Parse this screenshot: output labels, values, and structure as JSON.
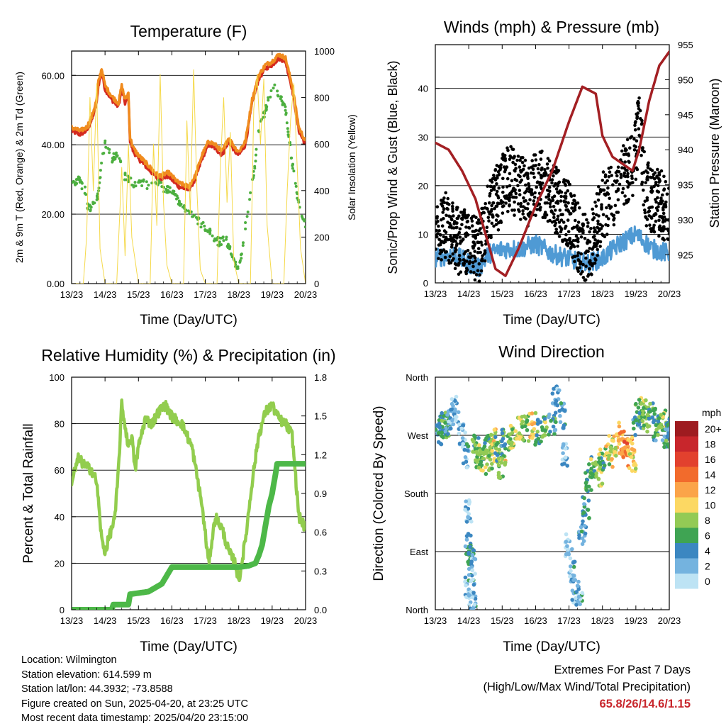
{
  "colors": {
    "temp2m": "#d42a20",
    "temp9m": "#f08b1e",
    "dewpoint": "#4caf3f",
    "solar": "#f5d94a",
    "wind": "#4f9ad4",
    "gust": "#000000",
    "pressure": "#a31f23",
    "rh": "#92cd4e",
    "precip": "#4db848",
    "grid": "#000000",
    "extremes_text": "#c8262c"
  },
  "footer": {
    "location": "Location: Wilmington",
    "elevation": "Station elevation: 614.599 m",
    "latlon": "Station lat/lon: 44.3932; -73.8588",
    "created": "Figure created on Sun, 2025-04-20, at 23:25 UTC",
    "latest": "Most recent data timestamp: 2025/04/20 23:15:00",
    "extremes_title1": "Extremes For Past 7 Days",
    "extremes_title2": "(High/Low/Max Wind/Total Precipitation)",
    "extremes_values": "65.8/26/14.6/1.15"
  },
  "chart_data": [
    {
      "id": "temperature",
      "type": "line",
      "title": "Temperature (F)",
      "xlabel": "Time (Day/UTC)",
      "ylabel": "2m & 9m T (Red, Orange) & 2m Td (Green)",
      "y2label": "Solar Insolation (Yellow)",
      "x_ticks": [
        "13/23",
        "14/23",
        "15/23",
        "16/23",
        "17/23",
        "18/23",
        "19/23",
        "20/23"
      ],
      "xlim": [
        0,
        7
      ],
      "ylim": [
        0,
        67
      ],
      "y_ticks": [
        0,
        20,
        40,
        60
      ],
      "y_tick_labels": [
        "0.00",
        "20.00",
        "40.00",
        "60.00"
      ],
      "y2lim": [
        0,
        1000
      ],
      "y2_ticks": [
        0,
        200,
        400,
        600,
        800,
        1000
      ],
      "grid": "horizontal",
      "series": [
        {
          "key": "t2m",
          "style": "line",
          "color": "temp2m",
          "x": [
            0,
            0.25,
            0.45,
            0.6,
            0.75,
            0.8,
            0.9,
            1.0,
            1.2,
            1.4,
            1.5,
            1.6,
            1.7,
            1.75,
            1.85,
            2.0,
            2.1,
            2.3,
            2.6,
            2.9,
            3.0,
            3.2,
            3.5,
            3.7,
            3.9,
            4.1,
            4.3,
            4.5,
            4.7,
            4.9,
            5.0,
            5.2,
            5.4,
            5.6,
            5.8,
            6.0,
            6.2,
            6.4,
            6.6,
            6.8,
            7.0
          ],
          "y": [
            44,
            43,
            44,
            47,
            52,
            57,
            61,
            56,
            53,
            51,
            56,
            52,
            54,
            41,
            38,
            36,
            35,
            33,
            30,
            31,
            30,
            28,
            27,
            30,
            36,
            40,
            39,
            37,
            41,
            38,
            37,
            40,
            52,
            59,
            62,
            63,
            65,
            64,
            56,
            44,
            40
          ]
        },
        {
          "key": "t9m",
          "style": "line",
          "color": "temp9m",
          "x": [
            0,
            0.25,
            0.45,
            0.6,
            0.75,
            0.8,
            0.9,
            1.0,
            1.2,
            1.4,
            1.5,
            1.6,
            1.7,
            1.75,
            1.85,
            2.0,
            2.1,
            2.3,
            2.6,
            2.9,
            3.0,
            3.2,
            3.5,
            3.7,
            3.9,
            4.1,
            4.3,
            4.5,
            4.7,
            4.9,
            5.0,
            5.2,
            5.4,
            5.6,
            5.8,
            6.0,
            6.2,
            6.4,
            6.6,
            6.8,
            7.0
          ],
          "y": [
            45,
            44,
            45,
            48,
            53,
            58,
            62,
            57,
            54,
            52,
            57,
            53,
            55,
            42,
            39,
            37,
            36,
            34,
            31,
            32,
            31,
            29,
            28,
            31,
            37,
            41,
            40,
            38,
            42,
            39,
            38,
            41,
            53,
            60,
            63,
            64,
            66,
            65,
            57,
            45,
            41
          ]
        },
        {
          "key": "td",
          "style": "dots",
          "color": "dewpoint",
          "x": [
            0,
            0.2,
            0.4,
            0.5,
            0.7,
            0.8,
            0.9,
            1.0,
            1.2,
            1.4,
            1.5,
            1.7,
            1.9,
            2.1,
            2.4,
            2.6,
            2.8,
            3.0,
            3.2,
            3.4,
            3.6,
            3.8,
            4.0,
            4.2,
            4.4,
            4.6,
            4.8,
            5.0,
            5.2,
            5.4,
            5.6,
            5.8,
            5.9,
            6.0,
            6.2,
            6.4,
            6.6,
            6.8,
            7.0
          ],
          "y": [
            29,
            30,
            27,
            21,
            24,
            26,
            35,
            41,
            36,
            38,
            32,
            30,
            28,
            29,
            28,
            29,
            27,
            27,
            24,
            22,
            20,
            18,
            16,
            14,
            12,
            13,
            9,
            3,
            17,
            28,
            44,
            50,
            53,
            57,
            55,
            50,
            35,
            22,
            17
          ]
        },
        {
          "key": "solar",
          "style": "thin",
          "color": "solar",
          "axis": "y2",
          "x": [
            0,
            0.35,
            0.45,
            0.55,
            0.65,
            0.75,
            0.85,
            1.0,
            1.35,
            1.5,
            1.6,
            1.7,
            1.8,
            2.0,
            2.35,
            2.45,
            2.55,
            2.65,
            2.75,
            2.85,
            3.0,
            3.35,
            3.45,
            3.55,
            3.65,
            3.75,
            3.85,
            4.0,
            4.35,
            4.45,
            4.55,
            4.65,
            4.75,
            4.85,
            5.0,
            5.35,
            5.45,
            5.55,
            5.65,
            5.75,
            5.85,
            6.0,
            6.35,
            6.45,
            6.55,
            6.65,
            6.75,
            6.85,
            7.0
          ],
          "y": [
            0,
            0,
            200,
            800,
            400,
            860,
            150,
            0,
            0,
            500,
            120,
            600,
            200,
            0,
            0,
            600,
            250,
            900,
            350,
            80,
            0,
            0,
            700,
            300,
            920,
            400,
            60,
            0,
            0,
            500,
            800,
            350,
            650,
            100,
            0,
            0,
            750,
            900,
            600,
            880,
            250,
            0,
            0,
            400,
            700,
            860,
            500,
            150,
            0
          ]
        }
      ]
    },
    {
      "id": "winds",
      "type": "scatter",
      "title": "Winds (mph) & Pressure (mb)",
      "xlabel": "Time (Day/UTC)",
      "ylabel": "Sonic/Prop Wind & Gust (Blue, Black)",
      "y2label": "Station Pressure (Maroon)",
      "x_ticks": [
        "13/23",
        "14/23",
        "15/23",
        "16/23",
        "17/23",
        "18/23",
        "19/23",
        "20/23"
      ],
      "xlim": [
        0,
        7
      ],
      "ylim": [
        0,
        49
      ],
      "y_ticks": [
        0,
        10,
        20,
        30,
        40
      ],
      "y2lim": [
        921,
        955
      ],
      "y2_ticks": [
        925,
        930,
        935,
        940,
        945,
        950,
        955
      ],
      "grid": "horizontal",
      "series": [
        {
          "key": "wind",
          "style": "line",
          "color": "wind",
          "x": [
            0,
            0.5,
            1.0,
            1.3,
            1.6,
            2.0,
            2.5,
            3.0,
            3.5,
            4.0,
            4.5,
            5.0,
            5.5,
            6.0,
            6.5,
            7.0
          ],
          "y": [
            5,
            6,
            4,
            3,
            6,
            7,
            7,
            8,
            6,
            5,
            4,
            5,
            8,
            10,
            7,
            6
          ]
        },
        {
          "key": "gust",
          "style": "dots",
          "color": "gust",
          "x": [
            0,
            0.3,
            0.6,
            1.0,
            1.3,
            1.6,
            1.9,
            2.2,
            2.5,
            2.8,
            3.1,
            3.4,
            3.7,
            4.0,
            4.3,
            4.6,
            5.0,
            5.3,
            5.6,
            5.9,
            6.1,
            6.3,
            6.6,
            7.0
          ],
          "y": [
            10,
            12,
            9,
            8,
            6,
            14,
            18,
            22,
            20,
            18,
            21,
            19,
            16,
            14,
            9,
            6,
            16,
            18,
            21,
            24,
            32,
            18,
            17,
            15
          ]
        },
        {
          "key": "pressure",
          "style": "line",
          "color": "pressure",
          "axis": "y2",
          "x": [
            0,
            0.4,
            0.8,
            1.2,
            1.5,
            1.8,
            2.1,
            2.5,
            3.0,
            3.5,
            4.0,
            4.4,
            4.8,
            5.0,
            5.3,
            5.6,
            5.9,
            6.1,
            6.4,
            6.7,
            7.0
          ],
          "y": [
            941,
            940,
            937,
            933,
            928,
            923,
            922,
            926,
            932,
            937,
            944,
            949,
            948,
            942,
            939,
            938,
            937,
            940,
            947,
            952,
            954
          ]
        }
      ]
    },
    {
      "id": "humidity",
      "type": "line",
      "title": "Relative Humidity (%) & Precipitation (in)",
      "xlabel": "Time (Day/UTC)",
      "ylabel": "Percent & Total Rainfall",
      "x_ticks": [
        "13/23",
        "14/23",
        "15/23",
        "16/23",
        "17/23",
        "18/23",
        "19/23",
        "20/23"
      ],
      "xlim": [
        0,
        7
      ],
      "ylim": [
        0,
        100
      ],
      "y_ticks": [
        0,
        20,
        40,
        60,
        80,
        100
      ],
      "y2lim": [
        0,
        1.8
      ],
      "y2_ticks": [
        0.0,
        0.3,
        0.6,
        0.9,
        1.2,
        1.5,
        1.8
      ],
      "y2_tick_labels": [
        "0.0",
        "0.3",
        "0.6",
        "0.9",
        "1.2",
        "1.5",
        "1.8"
      ],
      "grid": "horizontal",
      "series": [
        {
          "key": "rh",
          "style": "line",
          "color": "rh",
          "x": [
            0,
            0.2,
            0.4,
            0.6,
            0.75,
            0.9,
            1.0,
            1.2,
            1.3,
            1.4,
            1.5,
            1.7,
            1.8,
            1.9,
            2.0,
            2.2,
            2.4,
            2.6,
            2.8,
            3.0,
            3.3,
            3.6,
            3.9,
            4.1,
            4.3,
            4.5,
            4.7,
            4.9,
            5.0,
            5.2,
            5.4,
            5.6,
            5.8,
            6.0,
            6.2,
            6.4,
            6.6,
            6.8,
            7.0
          ],
          "y": [
            55,
            65,
            62,
            60,
            55,
            30,
            25,
            35,
            40,
            60,
            88,
            70,
            75,
            60,
            70,
            82,
            80,
            85,
            88,
            83,
            80,
            70,
            45,
            20,
            40,
            35,
            25,
            20,
            12,
            30,
            55,
            75,
            85,
            88,
            82,
            80,
            75,
            40,
            35
          ]
        },
        {
          "key": "precip",
          "style": "line",
          "color": "precip",
          "axis": "y2",
          "x": [
            0,
            1.2,
            1.25,
            1.7,
            1.75,
            2.3,
            2.7,
            3.0,
            3.5,
            4.0,
            4.5,
            5.0,
            5.3,
            5.5,
            5.6,
            5.7,
            5.8,
            5.9,
            6.0,
            6.1,
            6.15,
            7.0
          ],
          "y": [
            0,
            0,
            0.04,
            0.04,
            0.12,
            0.14,
            0.2,
            0.33,
            0.33,
            0.33,
            0.33,
            0.33,
            0.34,
            0.36,
            0.42,
            0.5,
            0.65,
            0.8,
            0.9,
            1.05,
            1.13,
            1.13
          ]
        }
      ]
    },
    {
      "id": "direction",
      "type": "scatter",
      "title": "Wind Direction",
      "xlabel": "Time (Day/UTC)",
      "ylabel": "Direction (Colored By Speed)",
      "x_ticks": [
        "13/23",
        "14/23",
        "15/23",
        "16/23",
        "17/23",
        "18/23",
        "19/23",
        "20/23"
      ],
      "xlim": [
        0,
        7
      ],
      "ylim": [
        0,
        360
      ],
      "y_ticks": [
        0,
        90,
        180,
        270,
        360
      ],
      "y_tick_labels": [
        "North",
        "East",
        "South",
        "West",
        "North"
      ],
      "grid": "horizontal",
      "legend": {
        "title": "mph",
        "labels": [
          "20+",
          "18",
          "16",
          "14",
          "12",
          "10",
          "8",
          "6",
          "4",
          "2",
          "0"
        ],
        "colors": [
          "#9e1b20",
          "#c8262c",
          "#e2412e",
          "#f26b2c",
          "#fba449",
          "#fcd863",
          "#93ca55",
          "#3fa453",
          "#3b87c1",
          "#74b3df",
          "#bde3f4"
        ]
      },
      "points": [
        [
          0.1,
          275,
          4
        ],
        [
          0.2,
          280,
          5
        ],
        [
          0.3,
          285,
          6
        ],
        [
          0.4,
          290,
          4
        ],
        [
          0.5,
          300,
          3
        ],
        [
          0.6,
          310,
          2
        ],
        [
          0.8,
          270,
          2
        ],
        [
          0.9,
          240,
          3
        ],
        [
          1.0,
          150,
          2
        ],
        [
          1.0,
          100,
          4
        ],
        [
          1.05,
          80,
          5
        ],
        [
          1.1,
          60,
          3
        ],
        [
          1.0,
          30,
          2
        ],
        [
          1.1,
          20,
          3
        ],
        [
          1.2,
          250,
          6
        ],
        [
          1.3,
          240,
          7
        ],
        [
          1.4,
          230,
          8
        ],
        [
          1.5,
          250,
          6
        ],
        [
          1.6,
          230,
          8
        ],
        [
          1.7,
          260,
          9
        ],
        [
          1.8,
          240,
          8
        ],
        [
          1.9,
          250,
          6
        ],
        [
          2.0,
          220,
          9
        ],
        [
          2.1,
          260,
          5
        ],
        [
          2.3,
          270,
          7
        ],
        [
          2.5,
          280,
          8
        ],
        [
          2.7,
          280,
          7
        ],
        [
          2.9,
          285,
          10
        ],
        [
          3.1,
          275,
          6
        ],
        [
          3.3,
          280,
          7
        ],
        [
          3.5,
          290,
          5
        ],
        [
          3.6,
          330,
          3
        ],
        [
          3.8,
          300,
          3
        ],
        [
          3.9,
          240,
          2
        ],
        [
          4.0,
          100,
          2
        ],
        [
          4.1,
          60,
          3
        ],
        [
          4.2,
          30,
          2
        ],
        [
          4.3,
          10,
          3
        ],
        [
          4.4,
          120,
          4
        ],
        [
          4.5,
          160,
          5
        ],
        [
          4.6,
          200,
          6
        ],
        [
          4.7,
          220,
          7
        ],
        [
          4.9,
          210,
          8
        ],
        [
          5.0,
          230,
          7
        ],
        [
          5.2,
          240,
          9
        ],
        [
          5.3,
          250,
          10
        ],
        [
          5.5,
          270,
          11
        ],
        [
          5.6,
          260,
          13
        ],
        [
          5.7,
          240,
          14
        ],
        [
          5.8,
          250,
          12
        ],
        [
          5.9,
          230,
          10
        ],
        [
          6.0,
          290,
          4
        ],
        [
          6.1,
          300,
          6
        ],
        [
          6.2,
          310,
          7
        ],
        [
          6.3,
          295,
          8
        ],
        [
          6.5,
          300,
          6
        ],
        [
          6.6,
          280,
          5
        ],
        [
          6.8,
          290,
          7
        ],
        [
          6.9,
          270,
          4
        ],
        [
          7.0,
          280,
          5
        ]
      ]
    }
  ]
}
